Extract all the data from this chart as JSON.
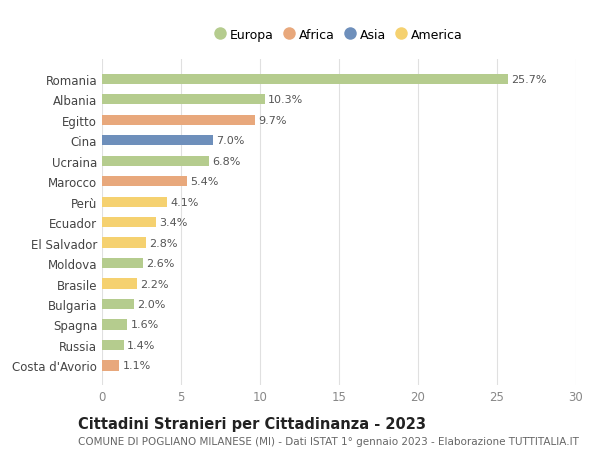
{
  "countries": [
    "Romania",
    "Albania",
    "Egitto",
    "Cina",
    "Ucraina",
    "Marocco",
    "Perù",
    "Ecuador",
    "El Salvador",
    "Moldova",
    "Brasile",
    "Bulgaria",
    "Spagna",
    "Russia",
    "Costa d'Avorio"
  ],
  "values": [
    25.7,
    10.3,
    9.7,
    7.0,
    6.8,
    5.4,
    4.1,
    3.4,
    2.8,
    2.6,
    2.2,
    2.0,
    1.6,
    1.4,
    1.1
  ],
  "continents": [
    "Europa",
    "Europa",
    "Africa",
    "Asia",
    "Europa",
    "Africa",
    "America",
    "America",
    "America",
    "Europa",
    "America",
    "Europa",
    "Europa",
    "Europa",
    "Africa"
  ],
  "colors": {
    "Europa": "#b5cc8e",
    "Africa": "#e8a87c",
    "Asia": "#6e8fbb",
    "America": "#f5d170"
  },
  "legend_order": [
    "Europa",
    "Africa",
    "Asia",
    "America"
  ],
  "xlim": [
    0,
    30
  ],
  "xticks": [
    0,
    5,
    10,
    15,
    20,
    25,
    30
  ],
  "title": "Cittadini Stranieri per Cittadinanza - 2023",
  "subtitle": "COMUNE DI POGLIANO MILANESE (MI) - Dati ISTAT 1° gennaio 2023 - Elaborazione TUTTITALIA.IT",
  "bg_color": "#ffffff",
  "grid_color": "#e0e0e0",
  "bar_label_fontsize": 8,
  "ytick_fontsize": 8.5,
  "xtick_fontsize": 8.5,
  "title_fontsize": 10.5,
  "subtitle_fontsize": 7.5,
  "legend_fontsize": 9,
  "bar_height": 0.5
}
